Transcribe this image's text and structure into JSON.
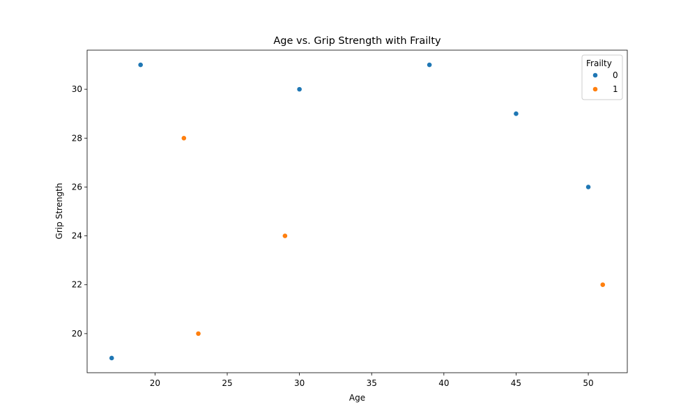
{
  "chart_data": {
    "type": "scatter",
    "title": "Age vs. Grip Strength with Frailty",
    "xlabel": "Age",
    "ylabel": "Grip Strength",
    "xlim": [
      15.3,
      52.7
    ],
    "ylim": [
      18.4,
      31.6
    ],
    "xticks": [
      20,
      25,
      30,
      35,
      40,
      45,
      50
    ],
    "yticks": [
      20,
      22,
      24,
      26,
      28,
      30
    ],
    "grid": false,
    "legend": {
      "title": "Frailty",
      "placement": "top-right"
    },
    "series": [
      {
        "name": "0",
        "color": "#1f77b4",
        "points": [
          {
            "x": 17,
            "y": 19
          },
          {
            "x": 19,
            "y": 31
          },
          {
            "x": 30,
            "y": 30
          },
          {
            "x": 39,
            "y": 31
          },
          {
            "x": 45,
            "y": 29
          },
          {
            "x": 50,
            "y": 26
          }
        ]
      },
      {
        "name": "1",
        "color": "#ff7f0e",
        "points": [
          {
            "x": 22,
            "y": 28
          },
          {
            "x": 23,
            "y": 20
          },
          {
            "x": 29,
            "y": 24
          },
          {
            "x": 51,
            "y": 22
          }
        ]
      }
    ]
  }
}
